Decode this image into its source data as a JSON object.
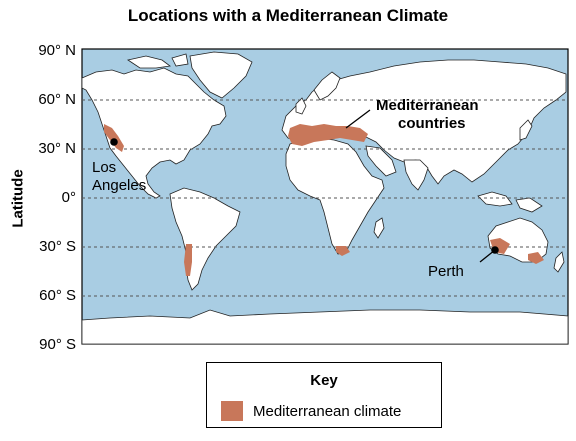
{
  "map": {
    "title": "Locations with a Mediterranean Climate",
    "axis_title": "Latitude",
    "latitude_ticks": [
      "90° N",
      "60° N",
      "30° N",
      "0°",
      "30° S",
      "60° S",
      "90° S"
    ],
    "labels": {
      "mediterranean_line1": "Mediterranean",
      "mediterranean_line2": "countries",
      "los_angeles_line1": "Los",
      "los_angeles_line2": "Angeles",
      "perth": "Perth"
    },
    "colors": {
      "ocean": "#a9cde3",
      "land": "#ffffff",
      "mediterranean_climate": "#c8775a",
      "gridline": "#555555"
    }
  },
  "legend": {
    "title": "Key",
    "items": [
      {
        "label": "Mediterranean climate",
        "color": "#c8775a"
      }
    ]
  }
}
